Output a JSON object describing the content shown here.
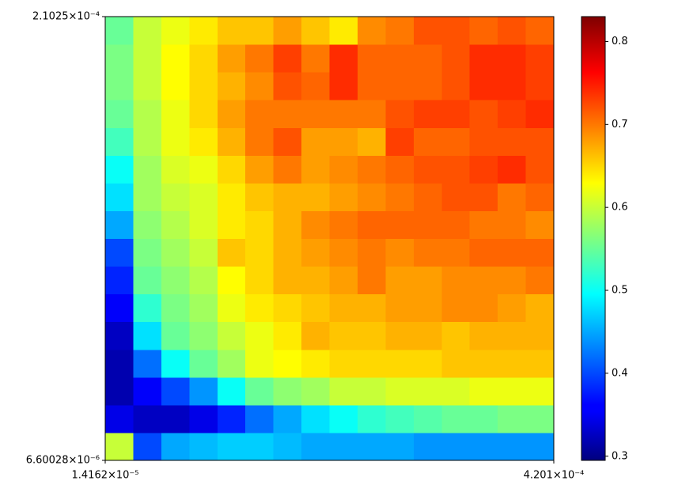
{
  "chart_data": {
    "type": "heatmap",
    "xscale": "log",
    "yscale": "log",
    "colormap": "jet",
    "xlim": [
      1.4162e-05,
      0.0004201
    ],
    "ylim": [
      6.60028e-06,
      0.00021025
    ],
    "xticks": [
      {
        "value": 1.4162e-05,
        "label": "1.4162×10⁻⁵"
      },
      {
        "value": 0.0004201,
        "label": "4.201×10⁻⁴"
      }
    ],
    "yticks": [
      {
        "value": 6.60028e-06,
        "label": "6.60028×10⁻⁶"
      },
      {
        "value": 0.00021025,
        "label": "2.1025×10⁻⁴"
      }
    ],
    "x_edges": [
      1.4162e-05,
      1.7504e-05,
      2.1635e-05,
      2.6741e-05,
      3.3052e-05,
      4.0852e-05,
      5.0493e-05,
      6.2409e-05,
      7.7138e-05,
      9.5343e-05,
      0.000117844,
      0.000145655,
      0.00018003,
      0.000222517,
      0.000275031,
      0.000339938,
      0.0004201
    ],
    "y_edges": [
      6.60028e-06,
      8.1943e-06,
      1.01732e-05,
      1.263e-05,
      1.56802e-05,
      1.9467e-05,
      2.41683e-05,
      3.0005e-05,
      3.72512e-05,
      4.62474e-05,
      5.74162e-05,
      7.12822e-05,
      8.84968e-05,
      0.000109869,
      0.000136402,
      0.000169343,
      0.00021025
    ],
    "values": [
      [
        0.6,
        0.4,
        0.45,
        0.46,
        0.47,
        0.47,
        0.46,
        0.45,
        0.45,
        0.45,
        0.45,
        0.44,
        0.44,
        0.44,
        0.44,
        0.44
      ],
      [
        0.35,
        0.33,
        0.33,
        0.35,
        0.38,
        0.42,
        0.45,
        0.48,
        0.5,
        0.52,
        0.53,
        0.54,
        0.55,
        0.55,
        0.56,
        0.56
      ],
      [
        0.32,
        0.36,
        0.4,
        0.44,
        0.5,
        0.55,
        0.57,
        0.58,
        0.6,
        0.6,
        0.61,
        0.61,
        0.61,
        0.62,
        0.62,
        0.62
      ],
      [
        0.32,
        0.42,
        0.5,
        0.55,
        0.58,
        0.62,
        0.63,
        0.64,
        0.65,
        0.65,
        0.65,
        0.65,
        0.66,
        0.66,
        0.66,
        0.66
      ],
      [
        0.33,
        0.48,
        0.55,
        0.57,
        0.6,
        0.62,
        0.64,
        0.67,
        0.66,
        0.66,
        0.67,
        0.67,
        0.66,
        0.67,
        0.67,
        0.67
      ],
      [
        0.36,
        0.52,
        0.56,
        0.58,
        0.62,
        0.64,
        0.65,
        0.66,
        0.67,
        0.67,
        0.68,
        0.68,
        0.69,
        0.69,
        0.68,
        0.67
      ],
      [
        0.38,
        0.55,
        0.57,
        0.59,
        0.63,
        0.65,
        0.67,
        0.67,
        0.68,
        0.7,
        0.68,
        0.68,
        0.69,
        0.69,
        0.69,
        0.7
      ],
      [
        0.4,
        0.56,
        0.58,
        0.6,
        0.66,
        0.65,
        0.67,
        0.68,
        0.69,
        0.7,
        0.69,
        0.7,
        0.7,
        0.71,
        0.71,
        0.71
      ],
      [
        0.45,
        0.57,
        0.59,
        0.61,
        0.64,
        0.65,
        0.67,
        0.69,
        0.7,
        0.71,
        0.71,
        0.71,
        0.71,
        0.7,
        0.7,
        0.69
      ],
      [
        0.48,
        0.58,
        0.6,
        0.61,
        0.64,
        0.66,
        0.67,
        0.67,
        0.68,
        0.69,
        0.7,
        0.71,
        0.72,
        0.72,
        0.7,
        0.71
      ],
      [
        0.5,
        0.58,
        0.61,
        0.62,
        0.65,
        0.68,
        0.7,
        0.68,
        0.69,
        0.7,
        0.71,
        0.72,
        0.72,
        0.73,
        0.74,
        0.72
      ],
      [
        0.53,
        0.59,
        0.62,
        0.64,
        0.67,
        0.7,
        0.72,
        0.68,
        0.68,
        0.67,
        0.73,
        0.71,
        0.71,
        0.72,
        0.72,
        0.72
      ],
      [
        0.55,
        0.59,
        0.62,
        0.65,
        0.68,
        0.7,
        0.7,
        0.7,
        0.7,
        0.7,
        0.72,
        0.73,
        0.73,
        0.72,
        0.73,
        0.74
      ],
      [
        0.56,
        0.6,
        0.63,
        0.65,
        0.67,
        0.69,
        0.72,
        0.71,
        0.74,
        0.71,
        0.71,
        0.71,
        0.72,
        0.74,
        0.74,
        0.73
      ],
      [
        0.56,
        0.6,
        0.63,
        0.65,
        0.68,
        0.7,
        0.73,
        0.7,
        0.74,
        0.71,
        0.71,
        0.71,
        0.72,
        0.74,
        0.74,
        0.73
      ],
      [
        0.55,
        0.6,
        0.62,
        0.64,
        0.66,
        0.66,
        0.68,
        0.66,
        0.64,
        0.69,
        0.7,
        0.72,
        0.72,
        0.71,
        0.72,
        0.71
      ]
    ],
    "clim": [
      0.295,
      0.83
    ],
    "cticks": [
      0.3,
      0.4,
      0.5,
      0.6,
      0.7,
      0.8
    ]
  }
}
